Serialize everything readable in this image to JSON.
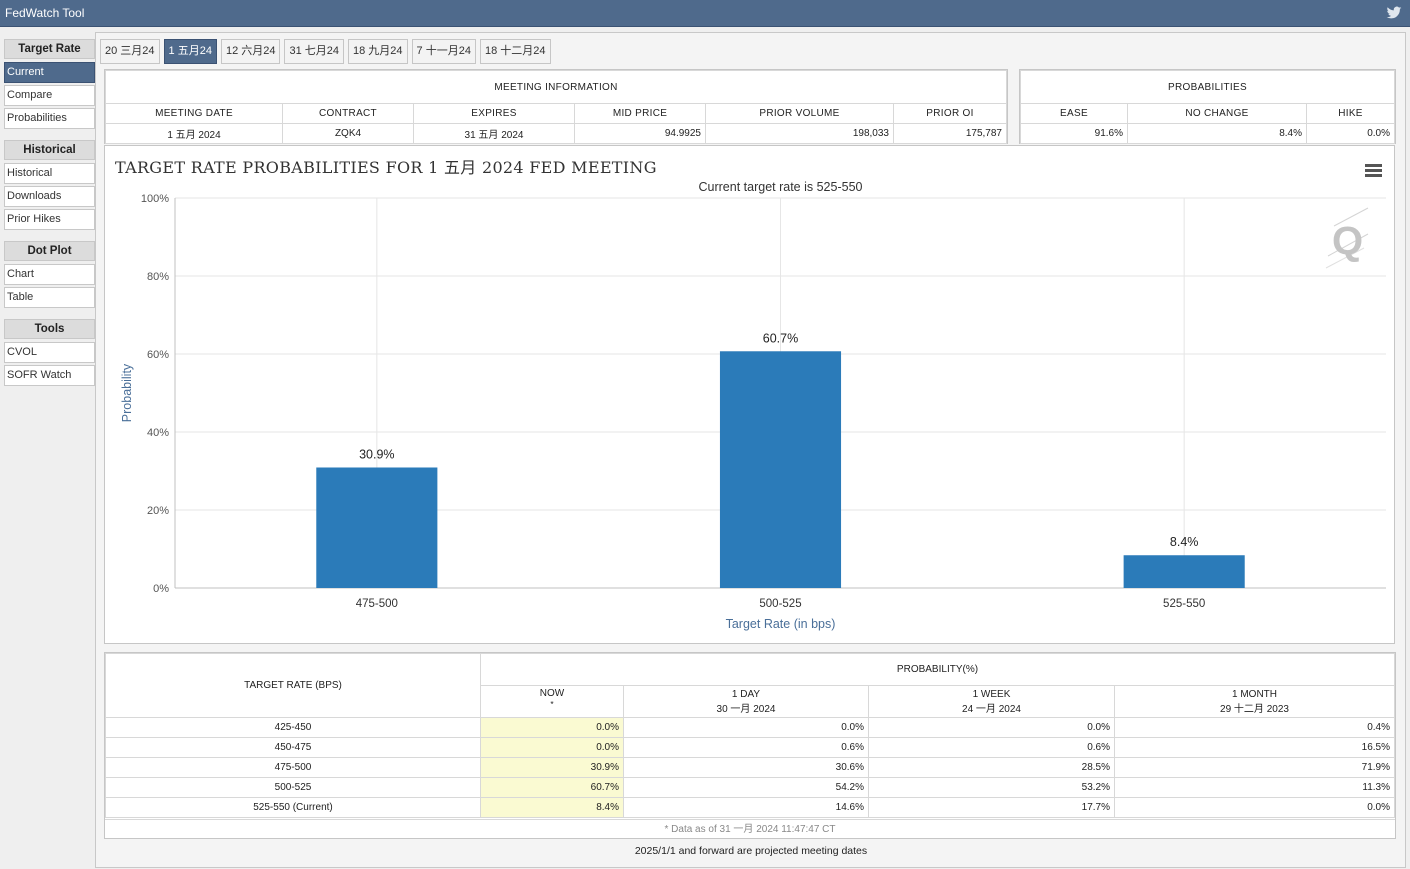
{
  "app": {
    "title": "FedWatch Tool"
  },
  "sidebar": {
    "groups": [
      {
        "header": "Target Rate",
        "items": [
          "Current",
          "Compare",
          "Probabilities"
        ]
      },
      {
        "header": "Historical",
        "items": [
          "Historical",
          "Downloads",
          "Prior Hikes"
        ]
      },
      {
        "header": "Dot Plot",
        "items": [
          "Chart",
          "Table"
        ]
      },
      {
        "header": "Tools",
        "items": [
          "CVOL",
          "SOFR Watch"
        ]
      }
    ],
    "active_item": "Current"
  },
  "tabs": [
    "20 三月24",
    "1 五月24",
    "12 六月24",
    "31 七月24",
    "18 九月24",
    "7 十一月24",
    "18 十二月24"
  ],
  "active_tab": "1 五月24",
  "meeting_info": {
    "title": "MEETING INFORMATION",
    "headers": [
      "MEETING DATE",
      "CONTRACT",
      "EXPIRES",
      "MID PRICE",
      "PRIOR VOLUME",
      "PRIOR OI"
    ],
    "values": [
      "1 五月 2024",
      "ZQK4",
      "31 五月 2024",
      "94.9925",
      "198,033",
      "175,787"
    ]
  },
  "probabilities": {
    "title": "PROBABILITIES",
    "headers": [
      "EASE",
      "NO CHANGE",
      "HIKE"
    ],
    "values": [
      "91.6%",
      "8.4%",
      "0.0%"
    ]
  },
  "chart_data": {
    "type": "bar",
    "title": "TARGET RATE PROBABILITIES FOR 1 五月 2024 FED MEETING",
    "subtitle": "Current target rate is 525-550",
    "categories": [
      "475-500",
      "500-525",
      "525-550"
    ],
    "values": [
      30.9,
      60.7,
      8.4
    ],
    "data_labels": [
      "30.9%",
      "60.7%",
      "8.4%"
    ],
    "xlabel": "Target Rate (in bps)",
    "ylabel": "Probability",
    "ylim": [
      0,
      100
    ],
    "yticks": [
      "0%",
      "20%",
      "40%",
      "60%",
      "80%",
      "100%"
    ],
    "grid": true,
    "bar_color": "#2b7bb9"
  },
  "prob_table": {
    "rate_header": "TARGET RATE (BPS)",
    "prob_header": "PROBABILITY(%)",
    "columns": [
      {
        "line1": "NOW",
        "line2": ""
      },
      {
        "line1": "1 DAY",
        "line2": "30 一月 2024"
      },
      {
        "line1": "1 WEEK",
        "line2": "24 一月 2024"
      },
      {
        "line1": "1 MONTH",
        "line2": "29 十二月 2023"
      }
    ],
    "rows": [
      {
        "rate": "425-450",
        "values": [
          "0.0%",
          "0.0%",
          "0.0%",
          "0.4%"
        ]
      },
      {
        "rate": "450-475",
        "values": [
          "0.0%",
          "0.6%",
          "0.6%",
          "16.5%"
        ]
      },
      {
        "rate": "475-500",
        "values": [
          "30.9%",
          "30.6%",
          "28.5%",
          "71.9%"
        ]
      },
      {
        "rate": "500-525",
        "values": [
          "60.7%",
          "54.2%",
          "53.2%",
          "11.3%"
        ]
      },
      {
        "rate": "525-550 (Current)",
        "values": [
          "8.4%",
          "14.6%",
          "17.7%",
          "0.0%"
        ]
      }
    ],
    "note": "* Data as of 31 一月 2024 11:47:47 CT"
  },
  "footer": "2025/1/1 and forward are projected meeting dates",
  "colors": {
    "titlebar": "#4f6a8c",
    "accent": "#2b7bb9",
    "now_column": "#fafad2"
  }
}
